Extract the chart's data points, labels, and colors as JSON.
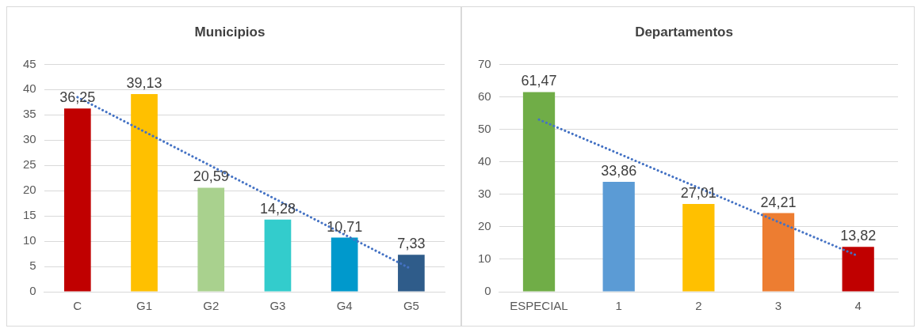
{
  "chart_data": [
    {
      "type": "bar",
      "title": "Municipios",
      "categories": [
        "C",
        "G1",
        "G2",
        "G3",
        "G4",
        "G5"
      ],
      "ylim": [
        0,
        45
      ],
      "yticks": [
        0,
        5,
        10,
        15,
        20,
        25,
        30,
        35,
        40,
        45
      ],
      "grid": "y",
      "series": [
        {
          "values": [
            36.25,
            39.13,
            20.59,
            14.28,
            10.71,
            7.33
          ],
          "value_labels": [
            "36,25",
            "39,13",
            "20,59",
            "14,28",
            "10,71",
            "7,33"
          ],
          "colors": [
            "#c00000",
            "#ffc000",
            "#a9d18e",
            "#33cccc",
            "#0099cc",
            "#2f5c8a"
          ]
        },
        {
          "type": "line",
          "x": [
            "C",
            "G5"
          ],
          "values": [
            38.5,
            4.5
          ],
          "color": "#4472c4",
          "line_style": "dotted",
          "marker": "none"
        }
      ]
    },
    {
      "type": "bar",
      "title": "Departamentos",
      "categories": [
        "ESPECIAL",
        "1",
        "2",
        "3",
        "4"
      ],
      "ylim": [
        0,
        70
      ],
      "yticks": [
        0,
        10,
        20,
        30,
        40,
        50,
        60,
        70
      ],
      "grid": "y",
      "series": [
        {
          "values": [
            61.47,
            33.86,
            27.01,
            24.21,
            13.82
          ],
          "value_labels": [
            "61,47",
            "33,86",
            "27,01",
            "24,21",
            "13,82"
          ],
          "colors": [
            "#70ad47",
            "#5b9bd5",
            "#ffc000",
            "#ed7d31",
            "#c00000"
          ]
        },
        {
          "type": "line",
          "x": [
            "ESPECIAL",
            "4"
          ],
          "values": [
            53,
            11
          ],
          "color": "#4472c4",
          "line_style": "dotted",
          "marker": "none"
        }
      ]
    }
  ]
}
